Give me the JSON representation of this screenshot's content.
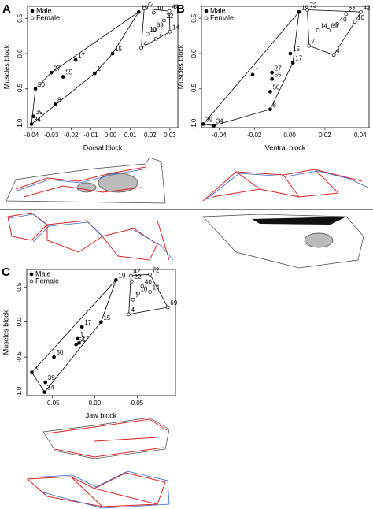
{
  "chart_data": [
    {
      "type": "scatter",
      "panel": "A",
      "xlabel": "Dorsal block",
      "ylabel": "Muscles block",
      "xlim": [
        -0.042,
        0.034
      ],
      "ylim": [
        -1.05,
        0.67
      ],
      "xticks": [
        -0.04,
        -0.03,
        -0.02,
        -0.01,
        {
          "value": 0,
          "label": "0.00"
        },
        0.01,
        0.02,
        0.03
      ],
      "yticks": [
        {
          "value": -1,
          "label": "-1.0"
        },
        -0.5,
        {
          "value": 0,
          "label": "0.0"
        },
        0.5
      ],
      "legend": "upper left",
      "series": [
        {
          "name": "Male",
          "color": "#000000",
          "filled": true,
          "labels": [
            "19",
            "15",
            "17",
            "27",
            "50",
            "55",
            "1",
            "8",
            "39",
            "34"
          ],
          "x": [
            0.0142,
            0.001,
            -0.0177,
            -0.03,
            -0.038,
            -0.024,
            -0.008,
            -0.028,
            -0.039,
            -0.04
          ],
          "y": [
            0.59,
            0.0,
            -0.09,
            -0.27,
            -0.5,
            -0.33,
            -0.28,
            -0.72,
            -0.89,
            -1.0
          ]
        },
        {
          "name": "Female",
          "color": "#000000",
          "filled": false,
          "labels": [
            "72",
            "42",
            "40",
            "22",
            "69",
            "14",
            "10",
            "7",
            "4"
          ],
          "x": [
            0.017,
            0.0297,
            0.0218,
            0.027,
            0.022,
            0.03,
            0.0186,
            0.023,
            0.0155
          ],
          "y": [
            0.64,
            0.6,
            0.58,
            0.47,
            0.34,
            0.31,
            0.28,
            0.21,
            0.08
          ]
        }
      ]
    },
    {
      "type": "scatter",
      "panel": "B",
      "xlabel": "Ventral block",
      "ylabel": "Muscles block",
      "xlim": [
        -0.05,
        0.045
      ],
      "ylim": [
        -1.05,
        0.67
      ],
      "xticks": [
        -0.04,
        -0.02,
        {
          "value": 0,
          "label": "0.00"
        },
        0.02,
        0.04
      ],
      "yticks": [
        {
          "value": -1,
          "label": "-1.0"
        },
        -0.5,
        {
          "value": 0,
          "label": "0.0"
        },
        0.5
      ],
      "legend": "upper left",
      "series": [
        {
          "name": "Male",
          "color": "#000000",
          "filled": true,
          "labels": [
            "19",
            "15",
            "17",
            "27",
            "55",
            "1",
            "50",
            "8",
            "39",
            "34"
          ],
          "x": [
            0.0053,
            0.0004,
            0.0018,
            -0.01,
            -0.01,
            -0.021,
            -0.011,
            -0.011,
            -0.049,
            -0.043
          ],
          "y": [
            0.59,
            0.0,
            -0.13,
            -0.27,
            -0.36,
            -0.3,
            -0.54,
            -0.79,
            -1.0,
            -1.02
          ]
        },
        {
          "name": "Female",
          "color": "#000000",
          "filled": false,
          "labels": [
            "72",
            "42",
            "22",
            "40",
            "69",
            "14",
            "10",
            "7",
            "4"
          ],
          "x": [
            0.01,
            0.0404,
            0.032,
            0.027,
            0.022,
            0.016,
            0.037,
            0.011,
            0.025
          ],
          "y": [
            0.62,
            0.59,
            0.56,
            0.42,
            0.33,
            0.33,
            0.45,
            0.11,
            -0.02
          ]
        }
      ]
    },
    {
      "type": "scatter",
      "panel": "C",
      "xlabel": "Jaw block",
      "ylabel": "Muscles block",
      "xlim": [
        -0.08,
        0.095
      ],
      "ylim": [
        -1.05,
        0.75
      ],
      "xticks": [
        -0.05,
        {
          "value": 0,
          "label": "0.00"
        },
        0.05
      ],
      "yticks": [
        {
          "value": -1,
          "label": "-1.0"
        },
        -0.5,
        {
          "value": 0,
          "label": "0.0"
        },
        0.5
      ],
      "legend": "upper left",
      "series": [
        {
          "name": "Male",
          "color": "#000000",
          "filled": true,
          "labels": [
            "19",
            "15",
            "17",
            "1",
            "55",
            "27",
            "50",
            "8",
            "39",
            "34"
          ],
          "x": [
            0.025,
            0.0074,
            -0.015,
            -0.02,
            -0.022,
            -0.0185,
            -0.048,
            -0.074,
            -0.058,
            -0.059
          ],
          "y": [
            0.6,
            0.0,
            -0.07,
            -0.24,
            -0.32,
            -0.3,
            -0.5,
            -0.72,
            -0.86,
            -1.0
          ]
        },
        {
          "name": "Female",
          "color": "#000000",
          "filled": false,
          "labels": [
            "42",
            "72",
            "22",
            "40",
            "69",
            "14",
            "10",
            "7",
            "4"
          ],
          "x": [
            0.0426,
            0.065,
            0.0435,
            0.056,
            0.086,
            0.065,
            0.051,
            0.045,
            0.04
          ],
          "y": [
            0.66,
            0.68,
            0.58,
            0.51,
            0.21,
            0.43,
            0.41,
            0.32,
            0.11
          ]
        }
      ]
    }
  ]
}
